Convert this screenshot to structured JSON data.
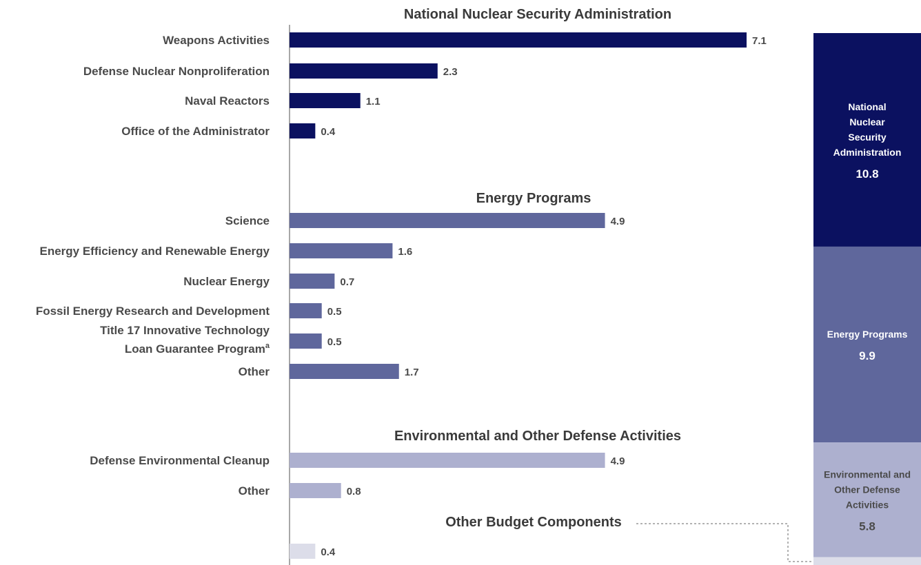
{
  "chart_data": {
    "type": "bar",
    "orientation": "horizontal",
    "groups": [
      {
        "title": "National Nuclear Security Administration",
        "color": "#0b1160",
        "categories": [
          {
            "label": "Weapons Activities",
            "value": 7.1,
            "value_label": "7.1"
          },
          {
            "label": "Defense Nuclear Nonproliferation",
            "value": 2.3,
            "value_label": "2.3"
          },
          {
            "label": "Naval Reactors",
            "value": 1.1,
            "value_label": "1.1"
          },
          {
            "label": "Office of the Administrator",
            "value": 0.4,
            "value_label": "0.4"
          }
        ]
      },
      {
        "title": "Energy Programs",
        "color": "#5f679c",
        "categories": [
          {
            "label": "Science",
            "value": 4.9,
            "value_label": "4.9"
          },
          {
            "label": "Energy Efficiency and Renewable Energy",
            "value": 1.6,
            "value_label": "1.6"
          },
          {
            "label": "Nuclear Energy",
            "value": 0.7,
            "value_label": "0.7"
          },
          {
            "label": "Fossil Energy Research and Development",
            "value": 0.5,
            "value_label": "0.5"
          },
          {
            "label": "Title 17 Innovative Technology",
            "label_line2": "Loan Guarantee Program",
            "label_sup": "a",
            "value": 0.5,
            "value_label": "0.5"
          },
          {
            "label": "Other",
            "value": 1.7,
            "value_label": "1.7"
          }
        ]
      },
      {
        "title": "Environmental and Other Defense Activities",
        "color": "#adb0cf",
        "categories": [
          {
            "label": "Defense Environmental Cleanup",
            "value": 4.9,
            "value_label": "4.9"
          },
          {
            "label": "Other",
            "value": 0.8,
            "value_label": "0.8"
          }
        ]
      },
      {
        "title": "Other Budget Components",
        "color": "#dcdde9",
        "categories": [
          {
            "label": "",
            "value": 0.4,
            "value_label": "0.4"
          }
        ]
      }
    ],
    "stacked_summary": [
      {
        "label_lines": [
          "National",
          "Nuclear",
          "Security",
          "Administration"
        ],
        "value": 10.8,
        "value_label": "10.8",
        "color": "#0b1160",
        "text_color": "#ffffff"
      },
      {
        "label_lines": [
          "Energy Programs"
        ],
        "value": 9.9,
        "value_label": "9.9",
        "color": "#5f679c",
        "text_color": "#ffffff"
      },
      {
        "label_lines": [
          "Environmental and",
          "Other Defense",
          "Activities"
        ],
        "value": 5.8,
        "value_label": "5.8",
        "color": "#adb0cf",
        "text_color": "#4a4a4a"
      },
      {
        "label_lines": [],
        "value": 0.4,
        "value_label": "",
        "color": "#dcdde9",
        "text_color": "#4a4a4a"
      }
    ]
  }
}
